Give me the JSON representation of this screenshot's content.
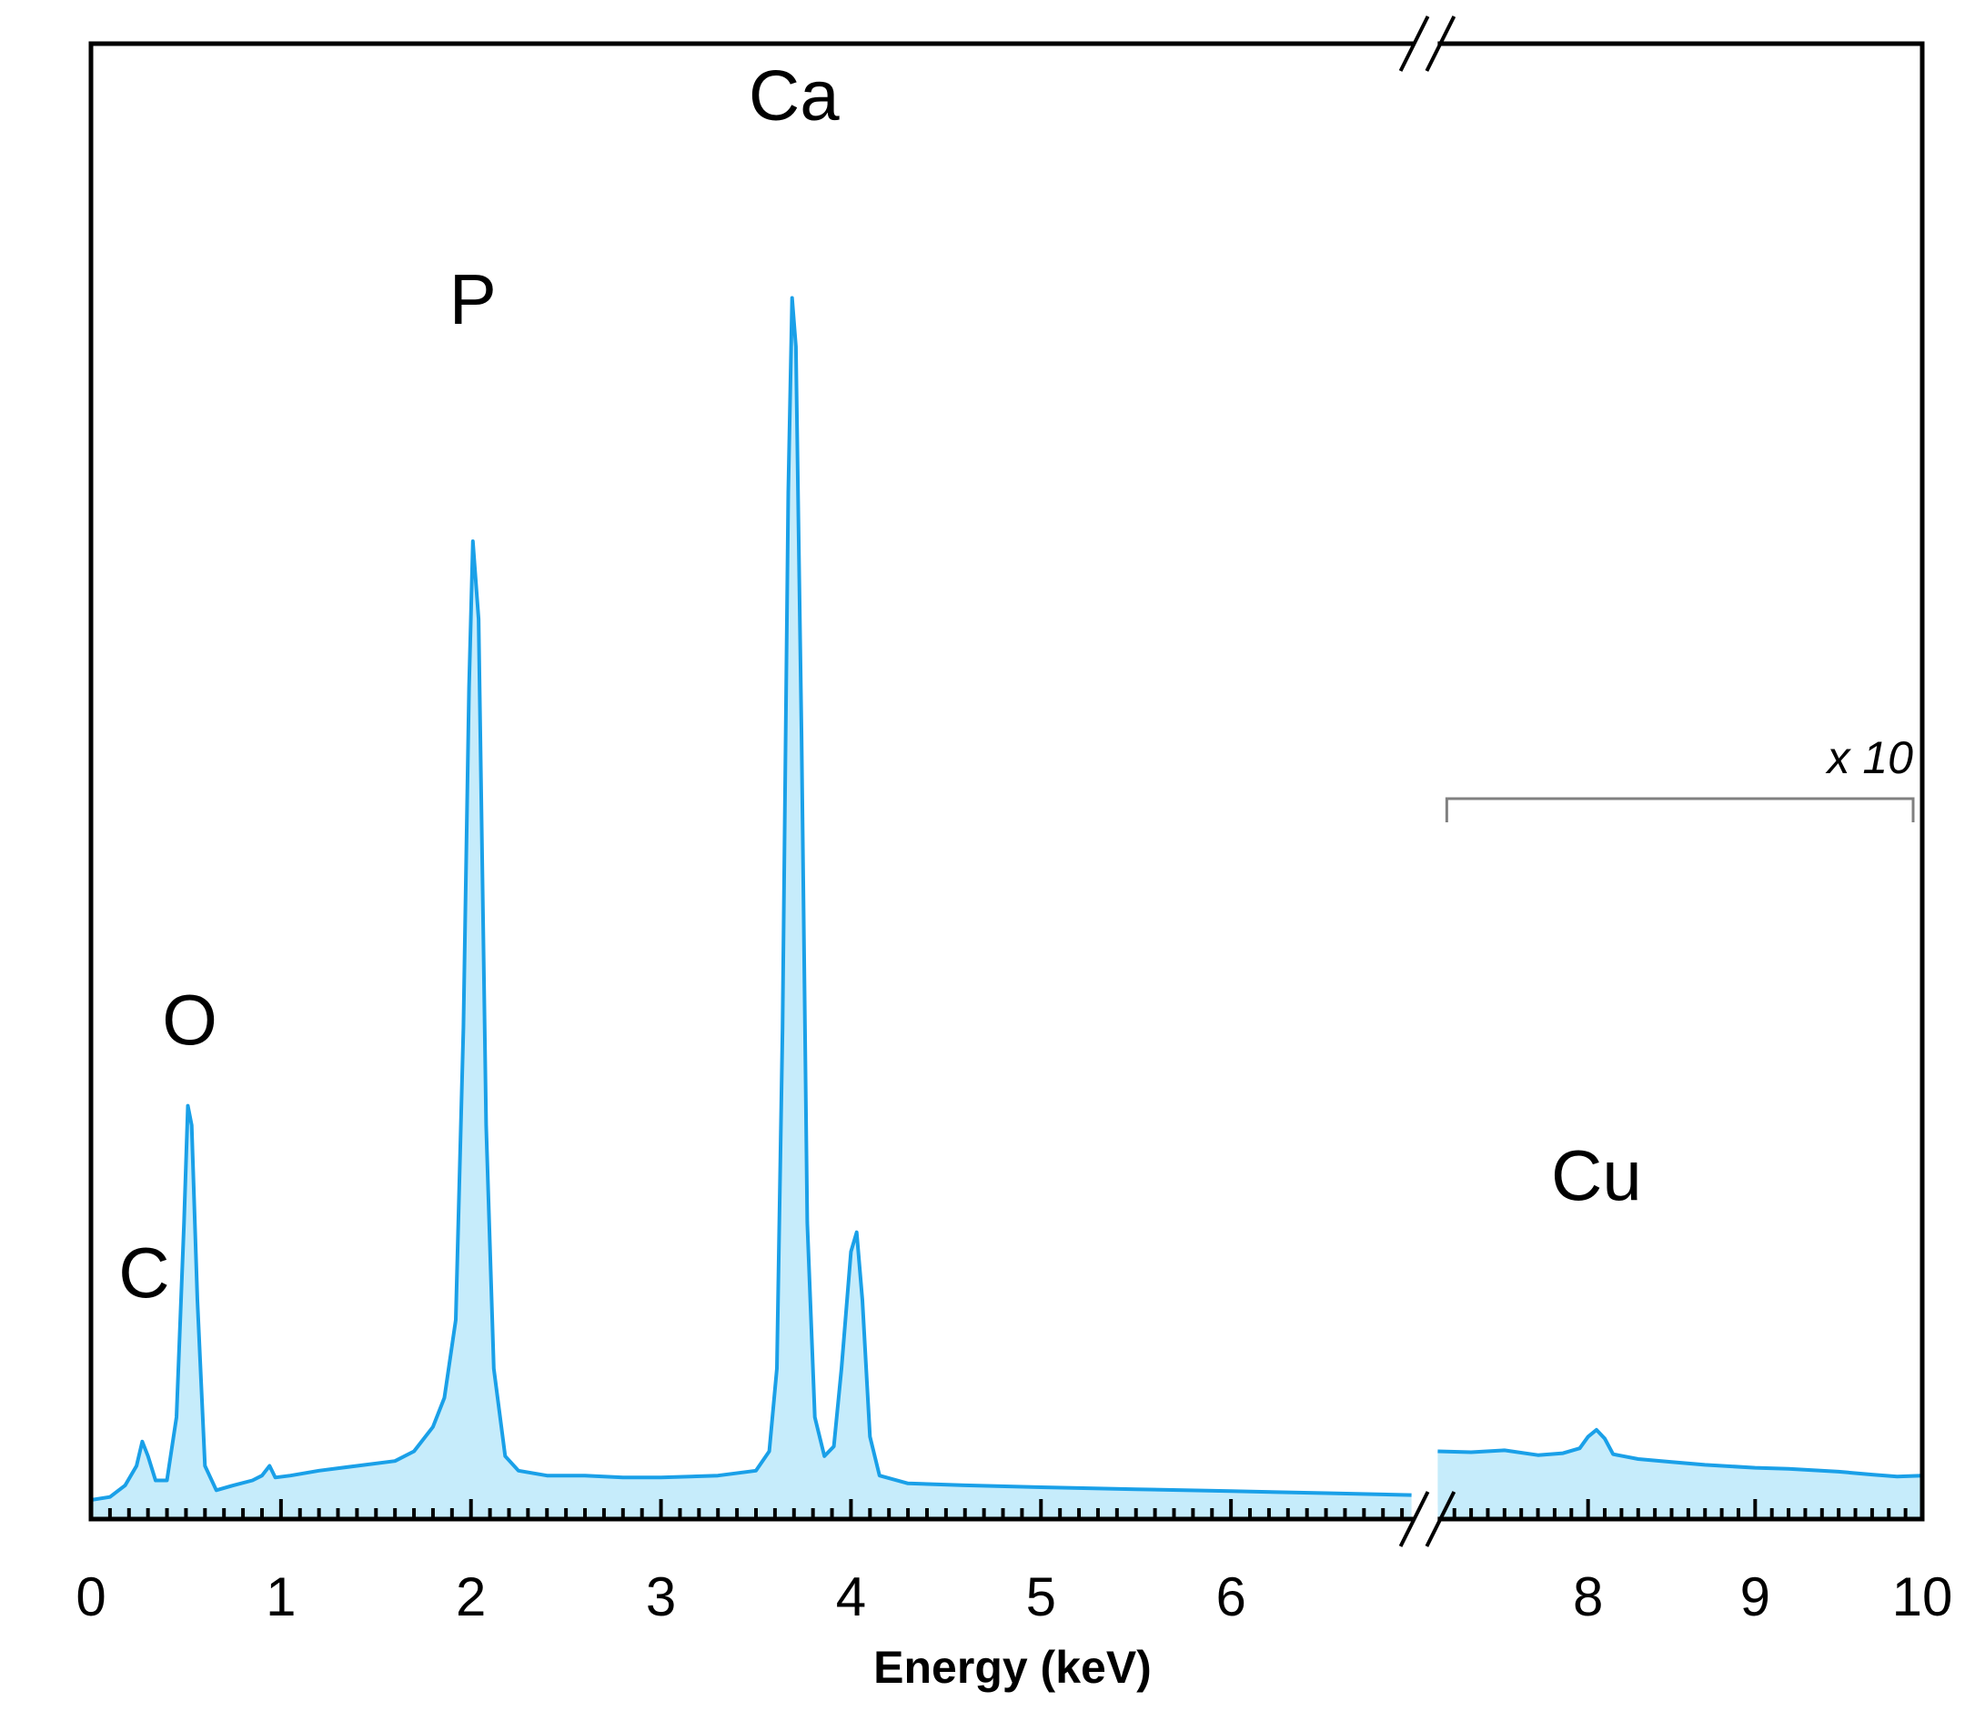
{
  "chart_data": {
    "type": "area",
    "title": "",
    "xlabel": "Energy (keV)",
    "ylabel": "",
    "xlim": [
      0,
      10
    ],
    "ylim": [
      0,
      1
    ],
    "grid": false,
    "legend": "none",
    "axis_break": {
      "from": 6.95,
      "to": 7.1
    },
    "x_ticks": [
      {
        "value": 0,
        "label": "0"
      },
      {
        "value": 1,
        "label": "1"
      },
      {
        "value": 2,
        "label": "2"
      },
      {
        "value": 3,
        "label": "3"
      },
      {
        "value": 4,
        "label": "4"
      },
      {
        "value": 5,
        "label": "5"
      },
      {
        "value": 6,
        "label": "6"
      },
      {
        "value": 8,
        "label": "8"
      },
      {
        "value": 9,
        "label": "9"
      },
      {
        "value": 10,
        "label": "10"
      }
    ],
    "colors": {
      "line": "#1aa0e8",
      "fill": "#c6ecfb",
      "axis": "#000000",
      "bracket": "#808080"
    },
    "peak_labels": [
      {
        "label": "C",
        "x": 0.28,
        "y": 0.2
      },
      {
        "label": "O",
        "x": 0.52,
        "y": 0.46
      },
      {
        "label": "P",
        "x": 2.01,
        "y": 1.2
      },
      {
        "label": "Ca",
        "x": 3.7,
        "y": 1.41
      },
      {
        "label": "Cu",
        "x": 8.05,
        "y": 0.3
      }
    ],
    "scale_annotation": {
      "label": "x 10",
      "x_start": 7.1,
      "x_end": 10.0
    },
    "series": [
      {
        "values": [
          [
            0.0,
            0.015
          ],
          [
            0.1,
            0.018
          ],
          [
            0.18,
            0.03
          ],
          [
            0.24,
            0.05
          ],
          [
            0.27,
            0.075
          ],
          [
            0.3,
            0.06
          ],
          [
            0.34,
            0.035
          ],
          [
            0.4,
            0.035
          ],
          [
            0.45,
            0.1
          ],
          [
            0.49,
            0.3
          ],
          [
            0.51,
            0.42
          ],
          [
            0.53,
            0.4
          ],
          [
            0.56,
            0.22
          ],
          [
            0.6,
            0.05
          ],
          [
            0.66,
            0.025
          ],
          [
            0.75,
            0.03
          ],
          [
            0.85,
            0.035
          ],
          [
            0.9,
            0.04
          ],
          [
            0.94,
            0.05
          ],
          [
            0.97,
            0.038
          ],
          [
            1.05,
            0.04
          ],
          [
            1.2,
            0.045
          ],
          [
            1.4,
            0.05
          ],
          [
            1.6,
            0.055
          ],
          [
            1.7,
            0.065
          ],
          [
            1.8,
            0.09
          ],
          [
            1.86,
            0.12
          ],
          [
            1.92,
            0.2
          ],
          [
            1.96,
            0.5
          ],
          [
            1.99,
            0.85
          ],
          [
            2.01,
            1.0
          ],
          [
            2.04,
            0.92
          ],
          [
            2.08,
            0.4
          ],
          [
            2.12,
            0.15
          ],
          [
            2.18,
            0.06
          ],
          [
            2.25,
            0.045
          ],
          [
            2.4,
            0.04
          ],
          [
            2.6,
            0.04
          ],
          [
            2.8,
            0.038
          ],
          [
            3.0,
            0.038
          ],
          [
            3.3,
            0.04
          ],
          [
            3.5,
            0.045
          ],
          [
            3.57,
            0.065
          ],
          [
            3.61,
            0.15
          ],
          [
            3.64,
            0.5
          ],
          [
            3.67,
            1.05
          ],
          [
            3.69,
            1.25
          ],
          [
            3.71,
            1.2
          ],
          [
            3.74,
            0.8
          ],
          [
            3.77,
            0.3
          ],
          [
            3.81,
            0.1
          ],
          [
            3.86,
            0.06
          ],
          [
            3.91,
            0.07
          ],
          [
            3.95,
            0.15
          ],
          [
            4.0,
            0.27
          ],
          [
            4.03,
            0.29
          ],
          [
            4.06,
            0.22
          ],
          [
            4.1,
            0.08
          ],
          [
            4.15,
            0.04
          ],
          [
            4.3,
            0.032
          ],
          [
            4.6,
            0.03
          ],
          [
            5.0,
            0.028
          ],
          [
            5.5,
            0.026
          ],
          [
            6.0,
            0.024
          ],
          [
            6.5,
            0.022
          ],
          [
            6.95,
            0.02
          ]
        ]
      },
      {
        "values": [
          [
            7.1,
            0.065
          ],
          [
            7.3,
            0.064
          ],
          [
            7.5,
            0.066
          ],
          [
            7.7,
            0.061
          ],
          [
            7.85,
            0.063
          ],
          [
            7.95,
            0.068
          ],
          [
            8.0,
            0.08
          ],
          [
            8.05,
            0.087
          ],
          [
            8.1,
            0.078
          ],
          [
            8.15,
            0.062
          ],
          [
            8.3,
            0.057
          ],
          [
            8.5,
            0.054
          ],
          [
            8.7,
            0.051
          ],
          [
            9.0,
            0.048
          ],
          [
            9.2,
            0.047
          ],
          [
            9.5,
            0.044
          ],
          [
            9.7,
            0.041
          ],
          [
            9.85,
            0.039
          ],
          [
            10.0,
            0.04
          ]
        ]
      }
    ]
  }
}
